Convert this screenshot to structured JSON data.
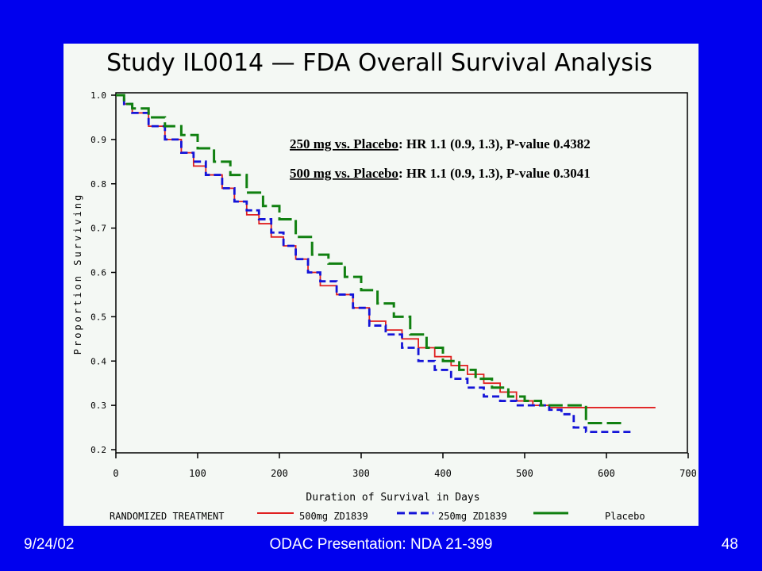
{
  "slide": {
    "footer_date": "9/24/02",
    "footer_center": "ODAC Presentation: NDA 21-399",
    "page_number": "48"
  },
  "chart_data": {
    "type": "line",
    "step": true,
    "title": "Study IL0014 — FDA Overall Survival Analysis",
    "xlabel": "Duration of Survival in Days",
    "ylabel": "Proportion Surviving",
    "xlim": [
      0,
      700
    ],
    "ylim": [
      0.2,
      1.0
    ],
    "xticks": [
      "0",
      "100",
      "200",
      "300",
      "400",
      "500",
      "600",
      "700"
    ],
    "yticks": [
      "0.2",
      "0.3",
      "0.4",
      "0.5",
      "0.6",
      "0.7",
      "0.8",
      "0.9",
      "1.0"
    ],
    "annotations": [
      {
        "underlined": "250 mg vs. Placebo",
        "rest": ": HR 1.1 (0.9, 1.3), P-value 0.4382"
      },
      {
        "underlined": "500 mg vs. Placebo",
        "rest": ": HR 1.1 (0.9, 1.3), P-value 0.3041"
      }
    ],
    "legend": {
      "title": "RANDOMIZED TREATMENT",
      "placement": "bottom"
    },
    "series": [
      {
        "name": "500mg ZD1839",
        "color": "#e02020",
        "dash": "solid",
        "x": [
          0,
          10,
          20,
          40,
          60,
          80,
          95,
          110,
          130,
          145,
          160,
          175,
          190,
          205,
          220,
          235,
          250,
          270,
          290,
          310,
          330,
          350,
          370,
          390,
          410,
          430,
          450,
          470,
          490,
          510,
          530,
          550,
          570,
          580,
          620,
          660
        ],
        "y": [
          1.0,
          0.98,
          0.96,
          0.93,
          0.9,
          0.87,
          0.84,
          0.82,
          0.79,
          0.76,
          0.73,
          0.71,
          0.68,
          0.66,
          0.63,
          0.6,
          0.57,
          0.55,
          0.52,
          0.49,
          0.47,
          0.45,
          0.43,
          0.41,
          0.39,
          0.37,
          0.35,
          0.33,
          0.31,
          0.3,
          0.295,
          0.295,
          0.295,
          0.295,
          0.295,
          0.295
        ]
      },
      {
        "name": "250mg ZD1839",
        "color": "#1414d8",
        "dash": "dashed",
        "x": [
          0,
          10,
          20,
          40,
          60,
          80,
          95,
          110,
          130,
          145,
          160,
          175,
          190,
          205,
          220,
          235,
          250,
          270,
          290,
          310,
          330,
          350,
          370,
          390,
          410,
          430,
          450,
          470,
          490,
          510,
          530,
          545,
          560,
          575,
          600,
          630
        ],
        "y": [
          1.0,
          0.98,
          0.96,
          0.93,
          0.9,
          0.87,
          0.85,
          0.82,
          0.79,
          0.76,
          0.74,
          0.72,
          0.69,
          0.66,
          0.63,
          0.6,
          0.58,
          0.55,
          0.52,
          0.48,
          0.46,
          0.43,
          0.4,
          0.38,
          0.36,
          0.34,
          0.32,
          0.31,
          0.3,
          0.3,
          0.29,
          0.28,
          0.25,
          0.24,
          0.24,
          0.24
        ]
      },
      {
        "name": "Placebo",
        "color": "#108010",
        "dash": "long-dashed",
        "x": [
          0,
          10,
          20,
          40,
          60,
          80,
          100,
          120,
          140,
          160,
          180,
          200,
          220,
          240,
          260,
          280,
          300,
          320,
          340,
          360,
          380,
          400,
          420,
          440,
          460,
          480,
          500,
          520,
          540,
          570,
          575,
          600,
          620
        ],
        "y": [
          1.0,
          0.98,
          0.97,
          0.95,
          0.93,
          0.91,
          0.88,
          0.85,
          0.82,
          0.78,
          0.75,
          0.72,
          0.68,
          0.64,
          0.62,
          0.59,
          0.56,
          0.53,
          0.5,
          0.46,
          0.43,
          0.4,
          0.38,
          0.36,
          0.34,
          0.32,
          0.31,
          0.3,
          0.3,
          0.3,
          0.26,
          0.26,
          0.26
        ]
      }
    ]
  }
}
